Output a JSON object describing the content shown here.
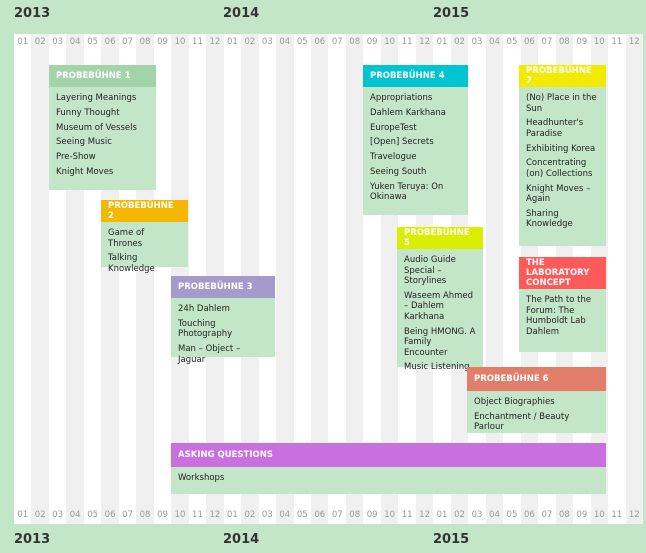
{
  "years": [
    "2013",
    "2014",
    "2015"
  ],
  "months": [
    "01",
    "02",
    "03",
    "04",
    "05",
    "06",
    "07",
    "08",
    "09",
    "10",
    "11",
    "12",
    "01",
    "02",
    "03",
    "04",
    "05",
    "06",
    "07",
    "08",
    "09",
    "10",
    "11",
    "12",
    "01",
    "02",
    "03",
    "04",
    "05",
    "06",
    "07",
    "08",
    "09",
    "10",
    "11",
    "12"
  ],
  "boxes": [
    {
      "title": "PROBEBÜHNE 1",
      "color": "#a3d3a9",
      "items": [
        "Layering Meanings",
        "Funny Thought",
        "Museum of Vessels",
        "Seeing Music",
        "Pre-Show",
        "Knight Moves"
      ]
    },
    {
      "title": "PROBEBÜHNE 2",
      "color": "#f5b800",
      "items": [
        "Game of Thrones",
        "Talking Knowledge"
      ]
    },
    {
      "title": "PROBEBÜHNE 3",
      "color": "#a49bcb",
      "items": [
        "24h Dahlem",
        "Touching Photography",
        "Man – Object – Jaguar"
      ]
    },
    {
      "title": "PROBEBÜHNE 4",
      "color": "#00c4cf",
      "items": [
        "Appropriations",
        "Dahlem Karkhana",
        "EuropeTest",
        "[Open] Secrets",
        "Travelogue",
        "Seeing South",
        "Yuken Teruya: On Okinawa"
      ]
    },
    {
      "title": "PROBEBÜHNE 5",
      "color": "#d9ee00",
      "items": [
        "Audio Guide Special – Storylines",
        "Waseem Ahmed – Dahlem Karkhana",
        "Being HMONG. A Family Encounter",
        "Music Listening"
      ]
    },
    {
      "title": "PROBEBÜHNE 6",
      "color": "#e07e6a",
      "items": [
        "Object Biographies",
        "Enchantment / Beauty Parlour"
      ]
    },
    {
      "title": "PROBEBÜHNE 7",
      "color": "#f2ea00",
      "items": [
        "(No) Place in the Sun",
        "Headhunter's Paradise",
        "Exhibiting Korea",
        "Concentrating (on) Collections",
        "Knight Moves – Again",
        "Sharing Knowledge"
      ]
    },
    {
      "title": "THE LABORATORY CONCEPT",
      "color": "#ff5a5a",
      "items": [
        "The Path to the Forum: The Humboldt Lab Dahlem"
      ]
    },
    {
      "title": "ASKING QUESTIONS",
      "color": "#c96fdf",
      "items": [
        "Workshops"
      ]
    }
  ]
}
